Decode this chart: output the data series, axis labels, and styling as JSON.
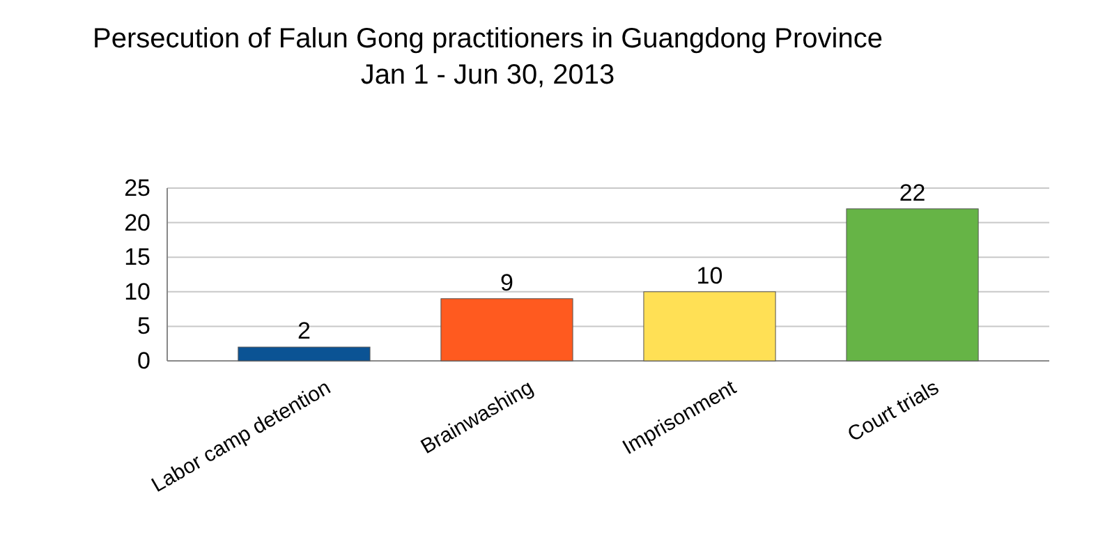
{
  "chart_data": {
    "type": "bar",
    "title": "Persecution of Falun Gong practitioners in Guangdong Province",
    "subtitle": "Jan 1 - Jun 30, 2013",
    "categories": [
      "Labor camp detention",
      "Brainwashing",
      "Imprisonment",
      "Court trials"
    ],
    "values": [
      2,
      9,
      10,
      22
    ],
    "colors": [
      "#0b5394",
      "#ff5a1f",
      "#ffe055",
      "#66b446"
    ],
    "ylim": [
      0,
      25
    ],
    "yticks": [
      0,
      5,
      10,
      15,
      20,
      25
    ],
    "grid": "y",
    "data_labels": true
  }
}
